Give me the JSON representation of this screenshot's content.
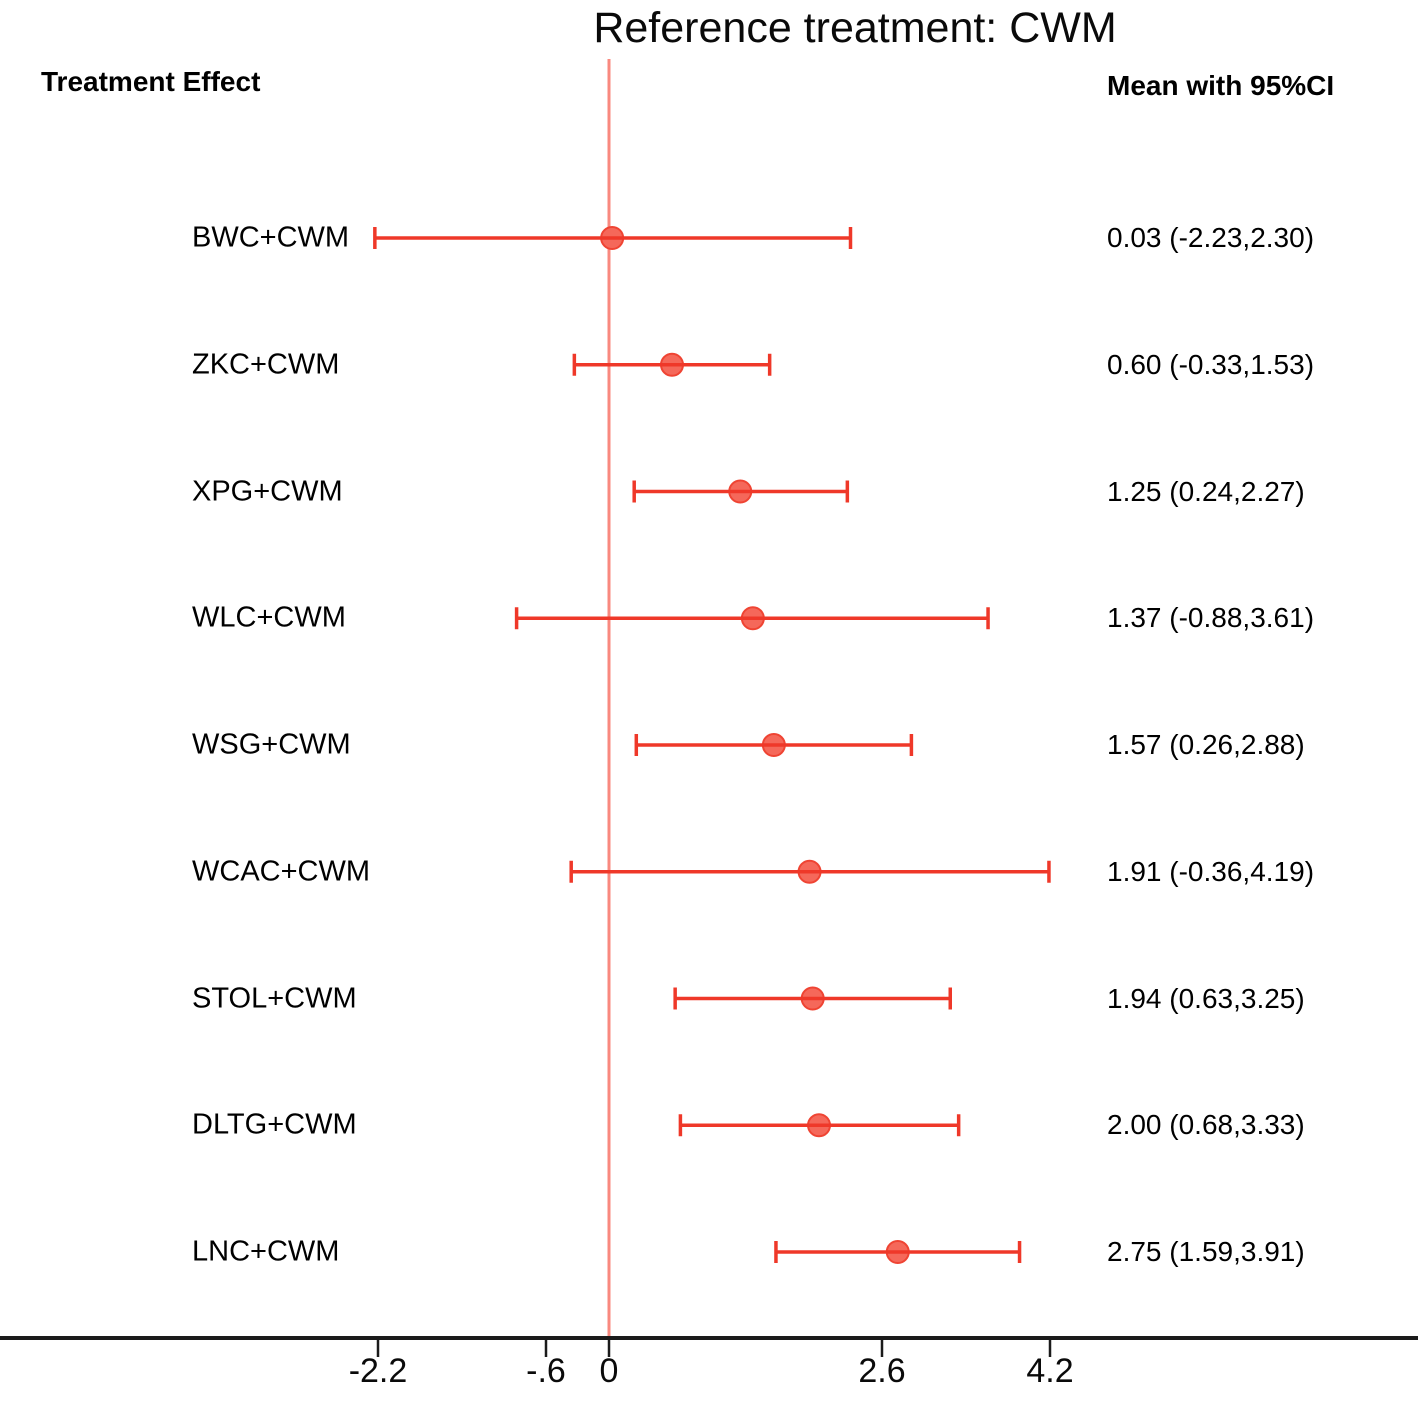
{
  "chart_data": {
    "type": "forest",
    "title": "Reference treatment: CWM",
    "columns": {
      "left": "Treatment Effect",
      "right": "Mean with 95%CI"
    },
    "reference_value": 0,
    "x_axis": {
      "ticks": [
        {
          "value": -2.2,
          "label": "-2.2"
        },
        {
          "value": -0.6,
          "label": "-.6"
        },
        {
          "value": 0,
          "label": "0"
        },
        {
          "value": 2.6,
          "label": "2.6"
        },
        {
          "value": 4.2,
          "label": "4.2"
        }
      ]
    },
    "rows": [
      {
        "label": "BWC+CWM",
        "mean": 0.03,
        "lower": -2.23,
        "upper": 2.3,
        "ci_text": "0.03 (-2.23,2.30)"
      },
      {
        "label": "ZKC+CWM",
        "mean": 0.6,
        "lower": -0.33,
        "upper": 1.53,
        "ci_text": "0.60 (-0.33,1.53)"
      },
      {
        "label": "XPG+CWM",
        "mean": 1.25,
        "lower": 0.24,
        "upper": 2.27,
        "ci_text": "1.25 (0.24,2.27)"
      },
      {
        "label": "WLC+CWM",
        "mean": 1.37,
        "lower": -0.88,
        "upper": 3.61,
        "ci_text": "1.37 (-0.88,3.61)"
      },
      {
        "label": "WSG+CWM",
        "mean": 1.57,
        "lower": 0.26,
        "upper": 2.88,
        "ci_text": "1.57 (0.26,2.88)"
      },
      {
        "label": "WCAC+CWM",
        "mean": 1.91,
        "lower": -0.36,
        "upper": 4.19,
        "ci_text": "1.91 (-0.36,4.19)"
      },
      {
        "label": "STOL+CWM",
        "mean": 1.94,
        "lower": 0.63,
        "upper": 3.25,
        "ci_text": "1.94 (0.63,3.25)"
      },
      {
        "label": "DLTG+CWM",
        "mean": 2.0,
        "lower": 0.68,
        "upper": 3.33,
        "ci_text": "2.00 (0.68,3.33)"
      },
      {
        "label": "LNC+CWM",
        "mean": 2.75,
        "lower": 1.59,
        "upper": 3.91,
        "ci_text": "2.75 (1.59,3.91)"
      }
    ],
    "colors": {
      "ci_line": "#EF3829",
      "marker_fill": "#F5685A",
      "marker_stroke": "#EF4433",
      "reference_line": "#F9897F",
      "axis": "#1B1B1B",
      "text": "#000000"
    }
  }
}
